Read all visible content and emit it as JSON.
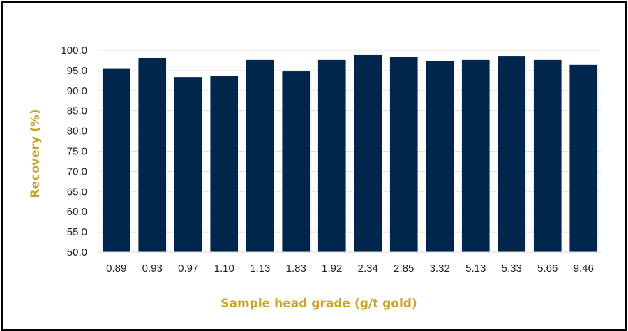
{
  "colors": {
    "bar": "#00264d",
    "axis_title": "#c9a227",
    "grid": "#e0e0e0",
    "frame": "#000000"
  },
  "chart_data": {
    "type": "bar",
    "title": "",
    "xlabel": "Sample head grade (g/t gold)",
    "ylabel": "Recovery (%)",
    "categories": [
      "0.89",
      "0.93",
      "0.97",
      "1.10",
      "1.13",
      "1.83",
      "1.92",
      "2.34",
      "2.85",
      "3.32",
      "5.13",
      "5.33",
      "5.66",
      "9.46"
    ],
    "values": [
      95.4,
      98.1,
      93.4,
      93.6,
      97.6,
      94.8,
      97.6,
      98.8,
      98.4,
      97.4,
      97.6,
      98.6,
      97.6,
      96.4
    ],
    "ylim": [
      50,
      100
    ],
    "yticks": [
      "50.0",
      "55.0",
      "60.0",
      "65.0",
      "70.0",
      "75.0",
      "80.0",
      "85.0",
      "90.0",
      "95.0",
      "100.0"
    ],
    "grid": true,
    "legend": "none"
  }
}
